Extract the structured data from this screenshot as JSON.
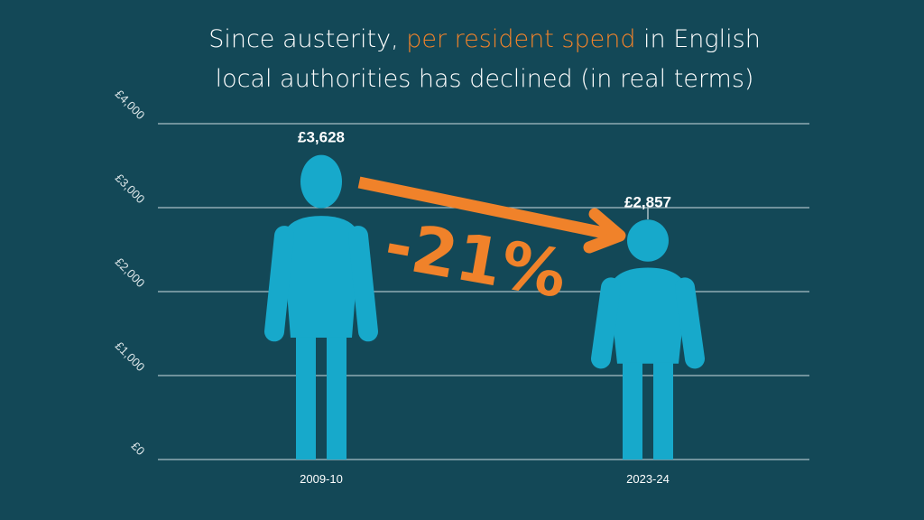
{
  "title": {
    "line1_pre": "Since austerity, ",
    "line1_highlight": "per resident spend",
    "line1_post": " in English",
    "line2": "local authorities has declined (in real terms)"
  },
  "colors": {
    "background": "#134857",
    "figure": "#17a9cb",
    "accent": "#f0822a",
    "grid": "#a9bfc5"
  },
  "chart_data": {
    "type": "bar",
    "style": "pictogram",
    "categories": [
      "2009-10",
      "2023-24"
    ],
    "values": [
      3628,
      2857
    ],
    "data_labels": [
      "£3,628",
      "£2,857"
    ],
    "ylim": [
      0,
      4000
    ],
    "yticks": [
      0,
      1000,
      2000,
      3000,
      4000
    ],
    "ytick_labels": [
      "£0",
      "£1,000",
      "£2,000",
      "£3,000",
      "£4,000"
    ],
    "grid": true,
    "annotation": "-21%"
  }
}
